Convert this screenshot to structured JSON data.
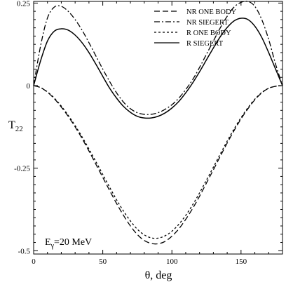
{
  "chart_data": {
    "type": "line",
    "title": "",
    "xlabel": "θ, deg",
    "ylabel_main": "T",
    "ylabel_sub": "22",
    "xlim": [
      0,
      180
    ],
    "ylim": [
      -0.51,
      0.255
    ],
    "xticks": [
      0,
      50,
      100,
      150
    ],
    "yticks": [
      0.25,
      0,
      -0.25,
      -0.5
    ],
    "ytick_labels": [
      "0.25",
      "0",
      "-0.25",
      "-0.5"
    ],
    "grid": false,
    "legend_position": "top-right",
    "annotation": {
      "main": "E",
      "sub": "γ",
      "rest": "=20 MeV"
    },
    "x": [
      0,
      5,
      10,
      15,
      20,
      25,
      30,
      35,
      40,
      45,
      50,
      55,
      60,
      65,
      70,
      75,
      80,
      85,
      90,
      95,
      100,
      105,
      110,
      115,
      120,
      125,
      130,
      135,
      140,
      145,
      150,
      155,
      160,
      165,
      170,
      175,
      180
    ],
    "series": [
      {
        "name": "NR ONE BODY",
        "dash": "8,4",
        "values": [
          0,
          -0.006,
          -0.02,
          -0.04,
          -0.065,
          -0.093,
          -0.125,
          -0.16,
          -0.198,
          -0.238,
          -0.278,
          -0.318,
          -0.357,
          -0.393,
          -0.425,
          -0.451,
          -0.469,
          -0.478,
          -0.479,
          -0.472,
          -0.456,
          -0.434,
          -0.405,
          -0.372,
          -0.335,
          -0.295,
          -0.255,
          -0.214,
          -0.174,
          -0.136,
          -0.101,
          -0.07,
          -0.043,
          -0.022,
          -0.008,
          -0.002,
          0
        ]
      },
      {
        "name": "NR SIEGERT",
        "dash": "8,3,2,3",
        "values": [
          0,
          0.12,
          0.205,
          0.238,
          0.24,
          0.225,
          0.2,
          0.168,
          0.13,
          0.09,
          0.05,
          0.012,
          -0.022,
          -0.05,
          -0.07,
          -0.082,
          -0.087,
          -0.087,
          -0.082,
          -0.072,
          -0.058,
          -0.038,
          -0.012,
          0.018,
          0.055,
          0.095,
          0.135,
          0.175,
          0.21,
          0.238,
          0.252,
          0.255,
          0.24,
          0.2,
          0.14,
          0.065,
          0
        ]
      },
      {
        "name": "R ONE BODY",
        "dash": "3,3",
        "values": [
          0,
          -0.006,
          -0.019,
          -0.038,
          -0.062,
          -0.09,
          -0.121,
          -0.155,
          -0.192,
          -0.23,
          -0.269,
          -0.308,
          -0.346,
          -0.38,
          -0.41,
          -0.435,
          -0.452,
          -0.461,
          -0.462,
          -0.455,
          -0.441,
          -0.42,
          -0.393,
          -0.361,
          -0.325,
          -0.286,
          -0.247,
          -0.207,
          -0.168,
          -0.131,
          -0.097,
          -0.067,
          -0.041,
          -0.021,
          -0.008,
          -0.002,
          0
        ]
      },
      {
        "name": "R SIEGERT",
        "dash": "",
        "values": [
          0,
          0.075,
          0.135,
          0.165,
          0.172,
          0.168,
          0.153,
          0.13,
          0.1,
          0.065,
          0.028,
          -0.008,
          -0.038,
          -0.063,
          -0.081,
          -0.093,
          -0.098,
          -0.098,
          -0.093,
          -0.083,
          -0.068,
          -0.048,
          -0.022,
          0.008,
          0.042,
          0.078,
          0.114,
          0.148,
          0.176,
          0.196,
          0.204,
          0.2,
          0.18,
          0.146,
          0.1,
          0.05,
          0
        ]
      }
    ]
  }
}
